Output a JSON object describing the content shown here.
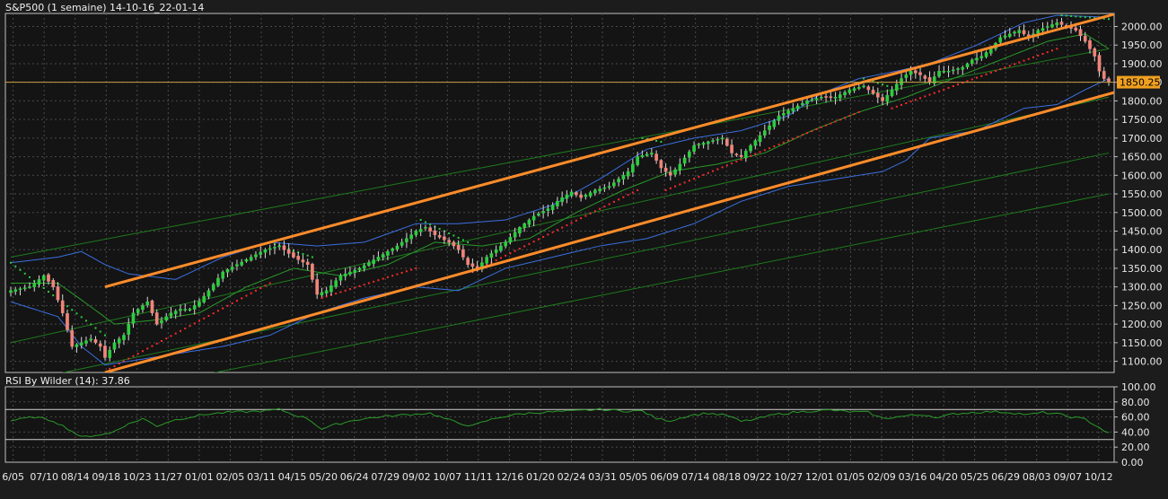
{
  "chart_title": "S&P500 (1 semaine) 14-10-16_22-01-14",
  "rsi_title": "RSI By Wilder (14): 37.86",
  "last_price_label": "1850.25",
  "colors": {
    "background": "#1c1c1c",
    "plot_background": "#141414",
    "grid": "#4a4a4a",
    "up_candle": "#2ecc40",
    "down_candle": "#f0857a",
    "bollinger": "#3b6fe0",
    "moving_average": "#2a9a2a",
    "parabolic_sar_up": "#2ecc40",
    "parabolic_sar_down": "#ff2a2a",
    "channel": "#ff8c2a",
    "regression_lines": "#1d7a1d",
    "price_line": "#c8a040",
    "price_label_bg": "#f0a020",
    "rsi_line": "#2a9a2a",
    "rsi_levels": "#d0d0d0"
  },
  "chart_data": [
    {
      "type": "candlestick",
      "title": "S&P500 (1 semaine) 14-10-16_22-01-14",
      "x_tick_labels": [
        "6/05",
        "07/10",
        "08/14",
        "09/18",
        "10/23",
        "11/27",
        "01/01",
        "02/05",
        "03/11",
        "04/15",
        "05/20",
        "06/24",
        "07/29",
        "09/02",
        "10/07",
        "11/11",
        "12/16",
        "01/20",
        "02/24",
        "03/31",
        "05/05",
        "06/09",
        "07/14",
        "08/18",
        "09/22",
        "10/27",
        "12/01",
        "01/05",
        "02/09",
        "03/16",
        "04/20",
        "05/25",
        "06/29",
        "08/03",
        "09/07",
        "10/12"
      ],
      "y_ticks": [
        1100,
        1150,
        1200,
        1250,
        1300,
        1350,
        1400,
        1450,
        1500,
        1550,
        1600,
        1650,
        1700,
        1750,
        1800,
        1850,
        1900,
        1950,
        2000
      ],
      "y_tick_labels": [
        "1100.00",
        "1150.00",
        "1200.00",
        "1250.00",
        "1300.00",
        "1350.00",
        "1400.00",
        "1450.00",
        "1500.00",
        "1550.00",
        "1600.00",
        "1650.00",
        "1700.00",
        "1750.00",
        "1800.00",
        "1850.00",
        "1900.00",
        "1950.00",
        "2000.00"
      ],
      "ylim": [
        1070,
        2035
      ],
      "grid": true,
      "close_anchors": [
        [
          0,
          1290
        ],
        [
          4,
          1300
        ],
        [
          7,
          1330
        ],
        [
          9,
          1300
        ],
        [
          11,
          1230
        ],
        [
          13,
          1140
        ],
        [
          15,
          1150
        ],
        [
          17,
          1160
        ],
        [
          19,
          1140
        ],
        [
          20,
          1110
        ],
        [
          22,
          1150
        ],
        [
          24,
          1170
        ],
        [
          26,
          1230
        ],
        [
          29,
          1260
        ],
        [
          31,
          1200
        ],
        [
          34,
          1230
        ],
        [
          36,
          1240
        ],
        [
          38,
          1240
        ],
        [
          40,
          1260
        ],
        [
          42,
          1290
        ],
        [
          45,
          1340
        ],
        [
          48,
          1360
        ],
        [
          51,
          1380
        ],
        [
          54,
          1400
        ],
        [
          57,
          1410
        ],
        [
          60,
          1380
        ],
        [
          63,
          1360
        ],
        [
          65,
          1280
        ],
        [
          67,
          1290
        ],
        [
          70,
          1330
        ],
        [
          74,
          1350
        ],
        [
          78,
          1380
        ],
        [
          82,
          1410
        ],
        [
          86,
          1450
        ],
        [
          88,
          1460
        ],
        [
          90,
          1440
        ],
        [
          93,
          1420
        ],
        [
          95,
          1400
        ],
        [
          97,
          1360
        ],
        [
          99,
          1350
        ],
        [
          101,
          1380
        ],
        [
          103,
          1400
        ],
        [
          105,
          1420
        ],
        [
          108,
          1460
        ],
        [
          111,
          1490
        ],
        [
          114,
          1510
        ],
        [
          117,
          1540
        ],
        [
          119,
          1555
        ],
        [
          121,
          1540
        ],
        [
          124,
          1560
        ],
        [
          127,
          1570
        ],
        [
          129,
          1590
        ],
        [
          131,
          1610
        ],
        [
          133,
          1650
        ],
        [
          136,
          1660
        ],
        [
          138,
          1620
        ],
        [
          140,
          1600
        ],
        [
          142,
          1630
        ],
        [
          145,
          1680
        ],
        [
          148,
          1690
        ],
        [
          151,
          1700
        ],
        [
          153,
          1660
        ],
        [
          155,
          1650
        ],
        [
          157,
          1680
        ],
        [
          160,
          1720
        ],
        [
          163,
          1760
        ],
        [
          166,
          1780
        ],
        [
          169,
          1800
        ],
        [
          172,
          1810
        ],
        [
          175,
          1810
        ],
        [
          178,
          1830
        ],
        [
          181,
          1840
        ],
        [
          183,
          1820
        ],
        [
          185,
          1800
        ],
        [
          187,
          1830
        ],
        [
          189,
          1860
        ],
        [
          191,
          1880
        ],
        [
          193,
          1870
        ],
        [
          195,
          1850
        ],
        [
          197,
          1880
        ],
        [
          199,
          1880
        ],
        [
          202,
          1890
        ],
        [
          204,
          1910
        ],
        [
          206,
          1920
        ],
        [
          208,
          1940
        ],
        [
          210,
          1970
        ],
        [
          212,
          1980
        ],
        [
          214,
          1990
        ],
        [
          216,
          1970
        ],
        [
          218,
          1990
        ],
        [
          220,
          2000
        ],
        [
          222,
          2010
        ],
        [
          224,
          2000
        ],
        [
          226,
          1990
        ],
        [
          228,
          1960
        ],
        [
          230,
          1920
        ],
        [
          231,
          1880
        ],
        [
          232,
          1860
        ],
        [
          233,
          1850.25
        ]
      ],
      "bollinger_upper_anchors": [
        [
          0,
          1365
        ],
        [
          10,
          1380
        ],
        [
          15,
          1395
        ],
        [
          20,
          1360
        ],
        [
          25,
          1335
        ],
        [
          35,
          1320
        ],
        [
          45,
          1380
        ],
        [
          55,
          1420
        ],
        [
          65,
          1410
        ],
        [
          75,
          1420
        ],
        [
          86,
          1470
        ],
        [
          95,
          1470
        ],
        [
          105,
          1480
        ],
        [
          115,
          1520
        ],
        [
          125,
          1590
        ],
        [
          135,
          1670
        ],
        [
          145,
          1700
        ],
        [
          155,
          1720
        ],
        [
          165,
          1760
        ],
        [
          172,
          1820
        ],
        [
          180,
          1860
        ],
        [
          188,
          1880
        ],
        [
          195,
          1900
        ],
        [
          205,
          1950
        ],
        [
          215,
          2010
        ],
        [
          222,
          2030
        ],
        [
          233,
          2025
        ]
      ],
      "bollinger_lower_anchors": [
        [
          0,
          1260
        ],
        [
          10,
          1220
        ],
        [
          15,
          1140
        ],
        [
          20,
          1090
        ],
        [
          25,
          1100
        ],
        [
          35,
          1120
        ],
        [
          45,
          1140
        ],
        [
          55,
          1170
        ],
        [
          65,
          1230
        ],
        [
          75,
          1270
        ],
        [
          86,
          1300
        ],
        [
          95,
          1290
        ],
        [
          105,
          1350
        ],
        [
          115,
          1380
        ],
        [
          125,
          1410
        ],
        [
          135,
          1430
        ],
        [
          145,
          1470
        ],
        [
          155,
          1530
        ],
        [
          165,
          1570
        ],
        [
          175,
          1590
        ],
        [
          185,
          1610
        ],
        [
          190,
          1640
        ],
        [
          195,
          1700
        ],
        [
          205,
          1720
        ],
        [
          215,
          1780
        ],
        [
          222,
          1790
        ],
        [
          228,
          1830
        ],
        [
          233,
          1860
        ]
      ],
      "moving_average_anchors": [
        [
          0,
          1310
        ],
        [
          10,
          1310
        ],
        [
          15,
          1265
        ],
        [
          22,
          1200
        ],
        [
          30,
          1210
        ],
        [
          40,
          1230
        ],
        [
          50,
          1300
        ],
        [
          60,
          1350
        ],
        [
          70,
          1330
        ],
        [
          80,
          1360
        ],
        [
          90,
          1420
        ],
        [
          100,
          1410
        ],
        [
          110,
          1430
        ],
        [
          120,
          1500
        ],
        [
          130,
          1560
        ],
        [
          140,
          1610
        ],
        [
          150,
          1630
        ],
        [
          160,
          1660
        ],
        [
          170,
          1720
        ],
        [
          180,
          1770
        ],
        [
          190,
          1810
        ],
        [
          200,
          1860
        ],
        [
          210,
          1910
        ],
        [
          220,
          1960
        ],
        [
          228,
          1980
        ],
        [
          233,
          1940
        ]
      ],
      "sar_segments": [
        {
          "dir": "down",
          "from": 0,
          "to": 20,
          "start": 1365,
          "end": 1170
        },
        {
          "dir": "up",
          "from": 21,
          "to": 55,
          "start": 1080,
          "end": 1310
        },
        {
          "dir": "down",
          "from": 56,
          "to": 64,
          "start": 1415,
          "end": 1380
        },
        {
          "dir": "up",
          "from": 66,
          "to": 86,
          "start": 1270,
          "end": 1350
        },
        {
          "dir": "down",
          "from": 87,
          "to": 97,
          "start": 1480,
          "end": 1420
        },
        {
          "dir": "up",
          "from": 98,
          "to": 133,
          "start": 1340,
          "end": 1560
        },
        {
          "dir": "down",
          "from": 134,
          "to": 138,
          "start": 1700,
          "end": 1690
        },
        {
          "dir": "up",
          "from": 139,
          "to": 180,
          "start": 1560,
          "end": 1770
        },
        {
          "dir": "down",
          "from": 181,
          "to": 186,
          "start": 1860,
          "end": 1840
        },
        {
          "dir": "up",
          "from": 187,
          "to": 222,
          "start": 1780,
          "end": 1940
        },
        {
          "dir": "down",
          "from": 223,
          "to": 233,
          "start": 2030,
          "end": 2020
        }
      ],
      "channel_lines": [
        [
          [
            20,
            1300
          ],
          [
            233,
            2030
          ]
        ],
        [
          [
            20,
            1070
          ],
          [
            233,
            1820
          ]
        ]
      ],
      "regression_lines": [
        [
          [
            0,
            1380
          ],
          [
            233,
            1940
          ]
        ],
        [
          [
            0,
            1150
          ],
          [
            233,
            1810
          ]
        ],
        [
          [
            0,
            1040
          ],
          [
            233,
            1660
          ]
        ],
        [
          [
            0,
            960
          ],
          [
            233,
            1550
          ]
        ]
      ],
      "last_price": 1850.25
    },
    {
      "type": "line",
      "title": "RSI By Wilder (14): 37.86",
      "y_ticks": [
        0,
        20,
        40,
        60,
        80,
        100
      ],
      "y_tick_labels": [
        "0.00",
        "20.00",
        "40.00",
        "60.00",
        "80.00",
        "100.00"
      ],
      "ylim": [
        0,
        100
      ],
      "levels": [
        30,
        70
      ],
      "current_value": 37.86,
      "rsi_anchors": [
        [
          0,
          55
        ],
        [
          5,
          60
        ],
        [
          9,
          55
        ],
        [
          12,
          45
        ],
        [
          15,
          33
        ],
        [
          18,
          36
        ],
        [
          21,
          38
        ],
        [
          24,
          48
        ],
        [
          28,
          58
        ],
        [
          31,
          48
        ],
        [
          34,
          55
        ],
        [
          38,
          60
        ],
        [
          42,
          64
        ],
        [
          46,
          66
        ],
        [
          50,
          67
        ],
        [
          54,
          68
        ],
        [
          57,
          70
        ],
        [
          60,
          63
        ],
        [
          63,
          58
        ],
        [
          66,
          44
        ],
        [
          69,
          50
        ],
        [
          73,
          56
        ],
        [
          78,
          60
        ],
        [
          82,
          62
        ],
        [
          86,
          64
        ],
        [
          89,
          65
        ],
        [
          92,
          58
        ],
        [
          95,
          52
        ],
        [
          98,
          48
        ],
        [
          101,
          55
        ],
        [
          104,
          60
        ],
        [
          108,
          64
        ],
        [
          112,
          66
        ],
        [
          116,
          67
        ],
        [
          120,
          68
        ],
        [
          125,
          70
        ],
        [
          130,
          68
        ],
        [
          134,
          68
        ],
        [
          137,
          58
        ],
        [
          140,
          55
        ],
        [
          144,
          62
        ],
        [
          148,
          65
        ],
        [
          152,
          62
        ],
        [
          155,
          54
        ],
        [
          158,
          57
        ],
        [
          162,
          63
        ],
        [
          166,
          66
        ],
        [
          170,
          68
        ],
        [
          174,
          69
        ],
        [
          178,
          67
        ],
        [
          182,
          66
        ],
        [
          185,
          58
        ],
        [
          188,
          60
        ],
        [
          191,
          62
        ],
        [
          194,
          63
        ],
        [
          197,
          59
        ],
        [
          200,
          64
        ],
        [
          204,
          66
        ],
        [
          208,
          67
        ],
        [
          212,
          66
        ],
        [
          216,
          63
        ],
        [
          219,
          66
        ],
        [
          222,
          64
        ],
        [
          225,
          60
        ],
        [
          228,
          57
        ],
        [
          231,
          46
        ],
        [
          233,
          37.86
        ]
      ]
    }
  ]
}
